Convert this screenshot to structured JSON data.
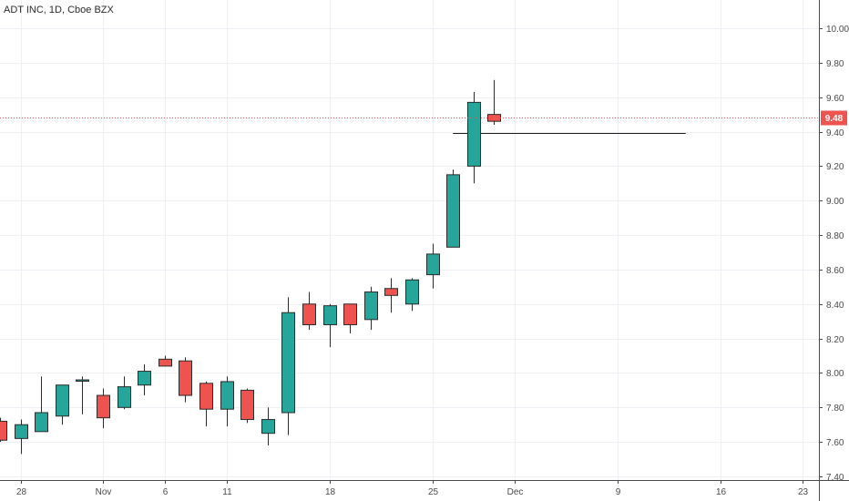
{
  "chart_data": {
    "type": "candlestick",
    "title": "ADT INC, 1D, Cboe BZX",
    "price_axis": {
      "min": 7.4,
      "max": 10.0,
      "ticks": [
        "7.40",
        "7.60",
        "7.80",
        "8.00",
        "8.20",
        "8.40",
        "8.60",
        "8.80",
        "9.00",
        "9.20",
        "9.40",
        "9.60",
        "9.80",
        "10.00"
      ]
    },
    "time_axis": {
      "ticks": [
        {
          "label": "28",
          "bar": 1
        },
        {
          "label": "Nov",
          "bar": 5
        },
        {
          "label": "6",
          "bar": 8
        },
        {
          "label": "11",
          "bar": 11
        },
        {
          "label": "18",
          "bar": 16
        },
        {
          "label": "25",
          "bar": 21
        },
        {
          "label": "Dec",
          "bar": 25
        },
        {
          "label": "9",
          "bar": 30
        },
        {
          "label": "16",
          "bar": 35
        },
        {
          "label": "23",
          "bar": 39
        }
      ]
    },
    "last_price": {
      "value": 9.48,
      "label": "9.48",
      "color": "#ef5350"
    },
    "horizontal_line": {
      "price": 9.39,
      "start_bar": 22,
      "end_bar": 33,
      "color": "#1e1e1e"
    },
    "colors": {
      "up": "#26a69a",
      "down": "#ef5350",
      "wick": "#2b2b2b",
      "grid": "#eef0f5"
    },
    "candles": [
      {
        "bar": 0,
        "open": 7.72,
        "high": 7.74,
        "low": 7.6,
        "close": 7.61
      },
      {
        "bar": 1,
        "open": 7.62,
        "high": 7.73,
        "low": 7.53,
        "close": 7.7
      },
      {
        "bar": 2,
        "open": 7.66,
        "high": 7.98,
        "low": 7.66,
        "close": 7.77
      },
      {
        "bar": 3,
        "open": 7.75,
        "high": 7.93,
        "low": 7.7,
        "close": 7.93
      },
      {
        "bar": 4,
        "open": 7.96,
        "high": 7.98,
        "low": 7.76,
        "close": 7.96
      },
      {
        "bar": 5,
        "open": 7.87,
        "high": 7.91,
        "low": 7.68,
        "close": 7.74
      },
      {
        "bar": 6,
        "open": 7.8,
        "high": 7.98,
        "low": 7.79,
        "close": 7.92
      },
      {
        "bar": 7,
        "open": 7.93,
        "high": 8.05,
        "low": 7.87,
        "close": 8.01
      },
      {
        "bar": 8,
        "open": 8.08,
        "high": 8.1,
        "low": 8.04,
        "close": 8.04
      },
      {
        "bar": 9,
        "open": 8.07,
        "high": 8.09,
        "low": 7.83,
        "close": 7.87
      },
      {
        "bar": 10,
        "open": 7.94,
        "high": 7.95,
        "low": 7.69,
        "close": 7.79
      },
      {
        "bar": 11,
        "open": 7.79,
        "high": 7.98,
        "low": 7.69,
        "close": 7.95
      },
      {
        "bar": 12,
        "open": 7.9,
        "high": 7.91,
        "low": 7.71,
        "close": 7.73
      },
      {
        "bar": 13,
        "open": 7.65,
        "high": 7.8,
        "low": 7.58,
        "close": 7.73
      },
      {
        "bar": 14,
        "open": 7.77,
        "high": 8.44,
        "low": 7.64,
        "close": 8.35
      },
      {
        "bar": 15,
        "open": 8.4,
        "high": 8.47,
        "low": 8.25,
        "close": 8.28
      },
      {
        "bar": 16,
        "open": 8.28,
        "high": 8.4,
        "low": 8.15,
        "close": 8.39
      },
      {
        "bar": 17,
        "open": 8.4,
        "high": 8.4,
        "low": 8.23,
        "close": 8.28
      },
      {
        "bar": 18,
        "open": 8.31,
        "high": 8.5,
        "low": 8.25,
        "close": 8.47
      },
      {
        "bar": 19,
        "open": 8.49,
        "high": 8.55,
        "low": 8.35,
        "close": 8.45
      },
      {
        "bar": 20,
        "open": 8.4,
        "high": 8.55,
        "low": 8.36,
        "close": 8.54
      },
      {
        "bar": 21,
        "open": 8.57,
        "high": 8.75,
        "low": 8.49,
        "close": 8.69
      },
      {
        "bar": 22,
        "open": 8.73,
        "high": 9.18,
        "low": 8.73,
        "close": 9.15
      },
      {
        "bar": 23,
        "open": 9.2,
        "high": 9.63,
        "low": 9.1,
        "close": 9.57
      },
      {
        "bar": 24,
        "open": 9.5,
        "high": 9.7,
        "low": 9.44,
        "close": 9.46
      }
    ]
  }
}
